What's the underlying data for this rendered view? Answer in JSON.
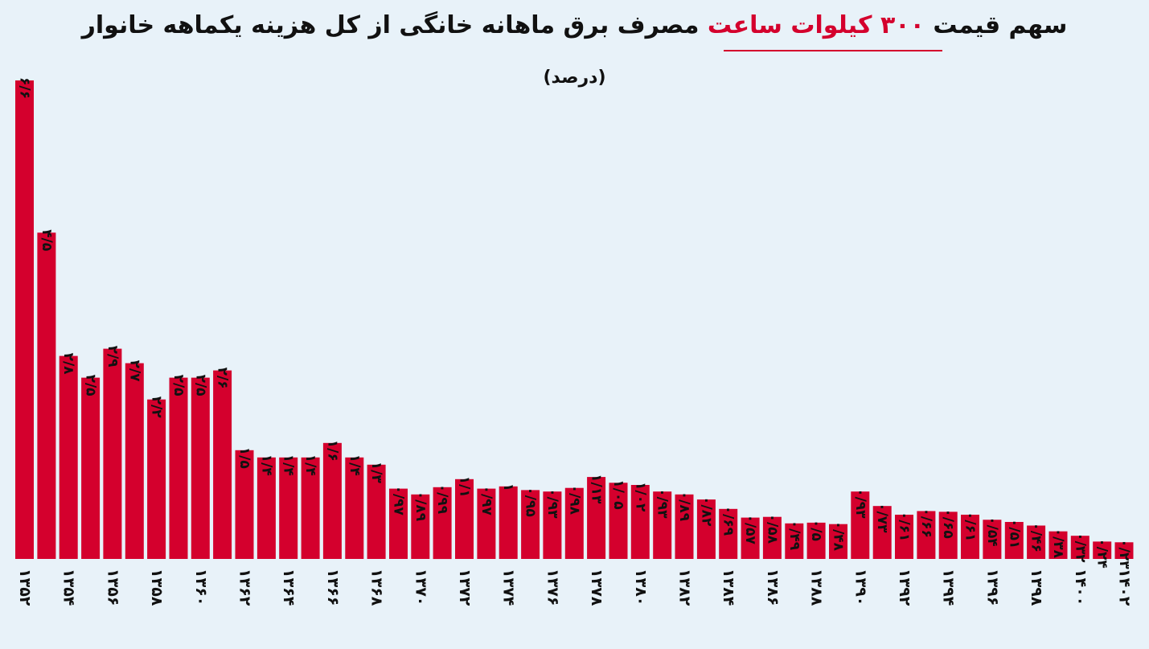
{
  "title": {
    "part1": "سهم قیمت",
    "highlight": "۳۰۰ کیلوات ساعت",
    "part2": "مصرف برق ماهانه خانگی از کل هزینه یکماهه خانوار"
  },
  "subtitle": "(درصد)",
  "colors": {
    "bar": "#d4002d",
    "background": "#e8f2f9",
    "highlight": "#d4002d"
  },
  "chart_data": {
    "type": "bar",
    "title": "سهم قیمت ۳۰۰ کیلوات ساعت مصرف برق ماهانه خانگی از کل هزینه یکماهه خانوار",
    "subtitle": "(درصد)",
    "categories": [
      "1352",
      "1353",
      "1354",
      "1355",
      "1356",
      "1357",
      "1358",
      "1359",
      "1360",
      "1361",
      "1362",
      "1363",
      "1364",
      "1365",
      "1366",
      "1367",
      "1368",
      "1369",
      "1370",
      "1371",
      "1372",
      "1373",
      "1374",
      "1375",
      "1376",
      "1377",
      "1378",
      "1379",
      "1380",
      "1381",
      "1382",
      "1383",
      "1384",
      "1385",
      "1386",
      "1387",
      "1388",
      "1389",
      "1390",
      "1391",
      "1392",
      "1393",
      "1394",
      "1395",
      "1396",
      "1397",
      "1398",
      "1399",
      "1400",
      "1401",
      "1402"
    ],
    "values": [
      6.6,
      4.5,
      2.8,
      2.5,
      2.9,
      2.7,
      2.2,
      2.5,
      2.5,
      2.6,
      1.5,
      1.4,
      1.4,
      1.4,
      1.6,
      1.4,
      1.3,
      0.97,
      0.89,
      0.99,
      1.1,
      0.97,
      1,
      0.95,
      0.93,
      0.98,
      1.13,
      1.05,
      1.02,
      0.93,
      0.89,
      0.82,
      0.69,
      0.57,
      0.58,
      0.49,
      0.5,
      0.48,
      0.93,
      0.73,
      0.61,
      0.66,
      0.65,
      0.61,
      0.54,
      0.51,
      0.46,
      0.38,
      0.32,
      0.24,
      0.23
    ],
    "value_labels": [
      "۶/۶",
      "۴/۵",
      "۲/۸",
      "۲/۵",
      "۲/۹",
      "۲/۷",
      "۲/۲",
      "۲/۵",
      "۲/۵",
      "۲/۶",
      "۱/۵",
      "۱/۴",
      "۱/۴",
      "۱/۴",
      "۱/۶",
      "۱/۴",
      "۱/۳",
      "۰/۹۷",
      "۰/۸۹",
      "۰/۹۹",
      "۱/۱",
      "۰/۹۷",
      "۱",
      "۰/۹۵",
      "۰/۹۳",
      "۰/۹۸",
      "۱/۱۳",
      "۱/۰۵",
      "۱/۰۲",
      "۰/۹۳",
      "۰/۸۹",
      "۰/۸۲",
      "۰/۶۹",
      "۰/۵۷",
      "۰/۵۸",
      "۰/۴۹",
      "۰/۵",
      "۰/۴۸",
      "۰/۹۳",
      "۰/۷۳",
      "۰/۶۱",
      "۰/۶۶",
      "۰/۶۵",
      "۰/۶۱",
      "۰/۵۴",
      "۰/۵۱",
      "۰/۴۶",
      "۰/۳۸",
      "۰/۳۲",
      "۰/۲۴",
      "۰/۲۳"
    ],
    "tick_labels": [
      "۱۳۵۲",
      "۱۳۵۴",
      "۱۳۵۶",
      "۱۳۵۸",
      "۱۳۶۰",
      "۱۳۶۲",
      "۱۳۶۴",
      "۱۳۶۶",
      "۱۳۶۸",
      "۱۳۷۰",
      "۱۳۷۲",
      "۱۳۷۴",
      "۱۳۷۶",
      "۱۳۷۸",
      "۱۳۸۰",
      "۱۳۸۲",
      "۱۳۸۴",
      "۱۳۸۶",
      "۱۳۸۸",
      "۱۳۹۰",
      "۱۳۹۲",
      "۱۳۹۴",
      "۱۳۹۶",
      "۱۳۹۸",
      "۱۴۰۰",
      "۱۴۰۲"
    ],
    "ylim": [
      0,
      6.6
    ],
    "grid": false,
    "legend": "none",
    "label_rotation": "vertical"
  }
}
